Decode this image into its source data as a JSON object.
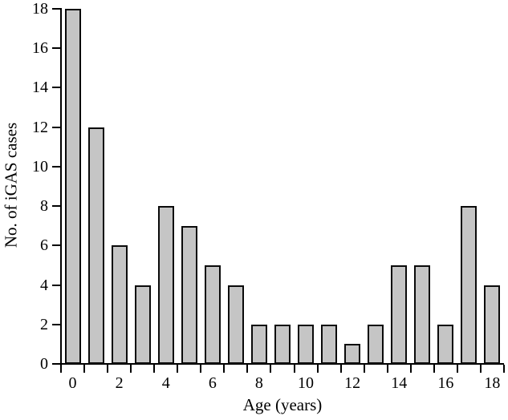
{
  "chart_data": {
    "type": "bar",
    "title": "",
    "xlabel": "Age (years)",
    "ylabel": "No. of iGAS cases",
    "categories": [
      0,
      1,
      2,
      3,
      4,
      5,
      6,
      7,
      8,
      9,
      10,
      11,
      12,
      13,
      14,
      15,
      16,
      17,
      18
    ],
    "values": [
      18,
      12,
      6,
      4,
      8,
      7,
      5,
      4,
      2,
      2,
      2,
      2,
      1,
      2,
      5,
      5,
      2,
      8,
      4
    ],
    "ylim": [
      0,
      18
    ],
    "ytick_step": 2,
    "xtick_label_step": 2,
    "grid": false,
    "legend": "none",
    "bar_fill": "#c5c5c5",
    "bar_border": "#0a0a0a",
    "axis_color": "#000000",
    "background": "#ffffff"
  }
}
